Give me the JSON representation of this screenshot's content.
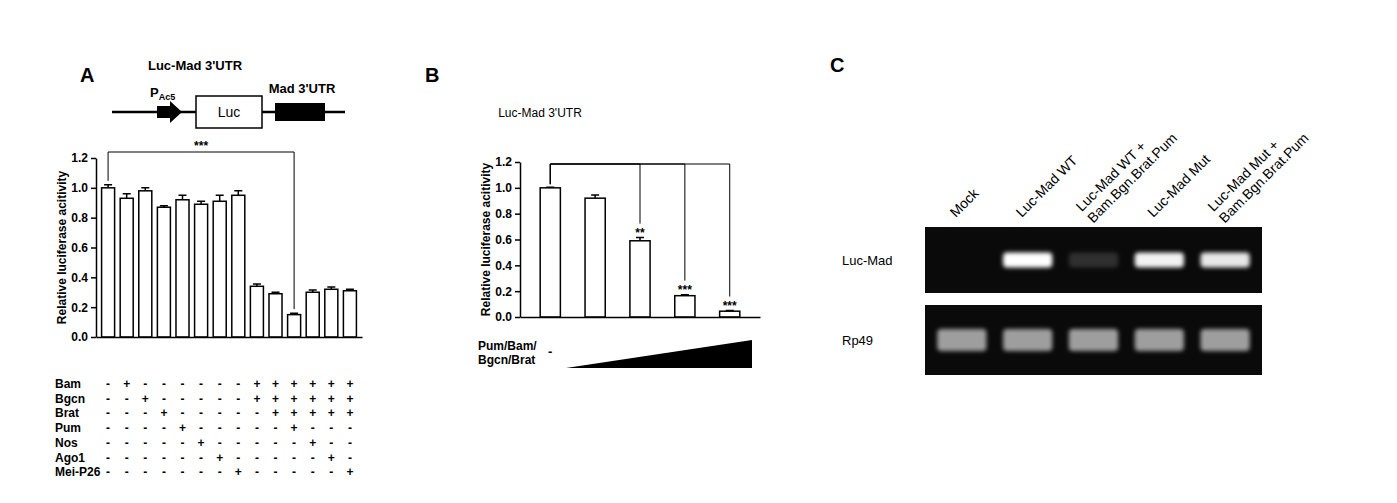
{
  "chart_data": [
    {
      "type": "bar",
      "y_label": "Relative luciferase acitivity",
      "categories": [
        null,
        null,
        null,
        null,
        null,
        null,
        null,
        null,
        null,
        null,
        null,
        null,
        null,
        null
      ],
      "values": [
        1.0,
        0.93,
        0.98,
        0.87,
        0.92,
        0.89,
        0.91,
        0.95,
        0.34,
        0.29,
        0.15,
        0.3,
        0.32,
        0.31
      ],
      "errors": [
        0.02,
        0.03,
        0.02,
        0.01,
        0.03,
        0.02,
        0.04,
        0.03,
        0.015,
        0.01,
        0.01,
        0.015,
        0.015,
        0.01
      ],
      "color": "#ffffff",
      "ylim": [
        0,
        1.2
      ],
      "yticks": [
        {
          "value": 0,
          "label": "0.0"
        },
        {
          "value": 0.2,
          "label": "0.2"
        },
        {
          "value": 0.4,
          "label": "0.4"
        },
        {
          "value": 0.6,
          "label": "0.6"
        },
        {
          "value": 0.8,
          "label": "0.8"
        },
        {
          "value": 1.0,
          "label": "1.0"
        },
        {
          "value": 1.2,
          "label": "1.2"
        }
      ],
      "significance": [
        {
          "from": 0,
          "to": 10,
          "label": "***"
        }
      ]
    },
    {
      "type": "bar",
      "title": "Luc-Mad 3'UTR",
      "y_label": "Relative luciferase acitivity",
      "x_label": [
        "Pum/Bam/",
        "Bgcn/Brat"
      ],
      "categories": [
        "-",
        null,
        null,
        null,
        null
      ],
      "values": [
        1.0,
        0.92,
        0.59,
        0.165,
        0.045
      ],
      "errors": [
        0.005,
        0.025,
        0.025,
        0.008,
        0.005
      ],
      "color": "#ffffff",
      "ylim": [
        0,
        1.2
      ],
      "yticks": [
        {
          "value": 0,
          "label": "0.0"
        },
        {
          "value": 0.2,
          "label": "0.2"
        },
        {
          "value": 0.4,
          "label": "0.4"
        },
        {
          "value": 0.6,
          "label": "0.6"
        },
        {
          "value": 0.8,
          "label": "0.8"
        },
        {
          "value": 1.0,
          "label": "1.0"
        },
        {
          "value": 1.2,
          "label": "1.2"
        }
      ],
      "significance": [
        {
          "from": 0,
          "to": 2,
          "label": "**"
        },
        {
          "from": 0,
          "to": 3,
          "label": "***"
        },
        {
          "from": 0,
          "to": 4,
          "label": "***"
        }
      ]
    }
  ],
  "panel_labels": [
    "A",
    "B",
    "C"
  ],
  "construct": {
    "title": "Luc-Mad 3'UTR",
    "promoter": "P",
    "promoter_subscript": "Ac5",
    "reporter": "Luc",
    "utr": "Mad 3'UTR"
  },
  "conditions": {
    "rows": [
      {
        "name": "Bam",
        "marks": [
          "-",
          "+",
          "-",
          "-",
          "-",
          "-",
          "-",
          "-",
          "+",
          "+",
          "+",
          "+",
          "+",
          "+"
        ]
      },
      {
        "name": "Bgcn",
        "marks": [
          "-",
          "-",
          "+",
          "-",
          "-",
          "-",
          "-",
          "-",
          "+",
          "+",
          "+",
          "+",
          "+",
          "+"
        ]
      },
      {
        "name": "Brat",
        "marks": [
          "-",
          "-",
          "-",
          "+",
          "-",
          "-",
          "-",
          "-",
          "-",
          "+",
          "+",
          "+",
          "+",
          "+"
        ]
      },
      {
        "name": "Pum",
        "marks": [
          "-",
          "-",
          "-",
          "-",
          "+",
          "-",
          "-",
          "-",
          "-",
          "-",
          "+",
          "-",
          "-",
          "-"
        ]
      },
      {
        "name": "Nos",
        "marks": [
          "-",
          "-",
          "-",
          "-",
          "-",
          "+",
          "-",
          "-",
          "-",
          "-",
          "-",
          "+",
          "-",
          "-"
        ]
      },
      {
        "name": "Ago1",
        "marks": [
          "-",
          "-",
          "-",
          "-",
          "-",
          "-",
          "+",
          "-",
          "-",
          "-",
          "-",
          "-",
          "+",
          "-"
        ]
      },
      {
        "name": "Mei-P26",
        "marks": [
          "-",
          "-",
          "-",
          "-",
          "-",
          "-",
          "-",
          "+",
          "-",
          "-",
          "-",
          "-",
          "-",
          "+"
        ]
      }
    ]
  },
  "gel": {
    "lanes": [
      [
        "Mock"
      ],
      [
        "Luc-Mad WT"
      ],
      [
        "Luc-Mad WT +",
        "Bam.Bgn.Brat.Pum"
      ],
      [
        "Luc-Mad Mut"
      ],
      [
        "Luc-Mad Mut +",
        "Bam.Bgn.Brat.Pum"
      ]
    ],
    "rows": [
      {
        "name": "Luc-Mad",
        "intensity": [
          0,
          1,
          0.15,
          0.95,
          0.9
        ]
      },
      {
        "name": "Rp49",
        "intensity": [
          0.8,
          0.8,
          0.8,
          0.8,
          0.8
        ]
      }
    ]
  }
}
